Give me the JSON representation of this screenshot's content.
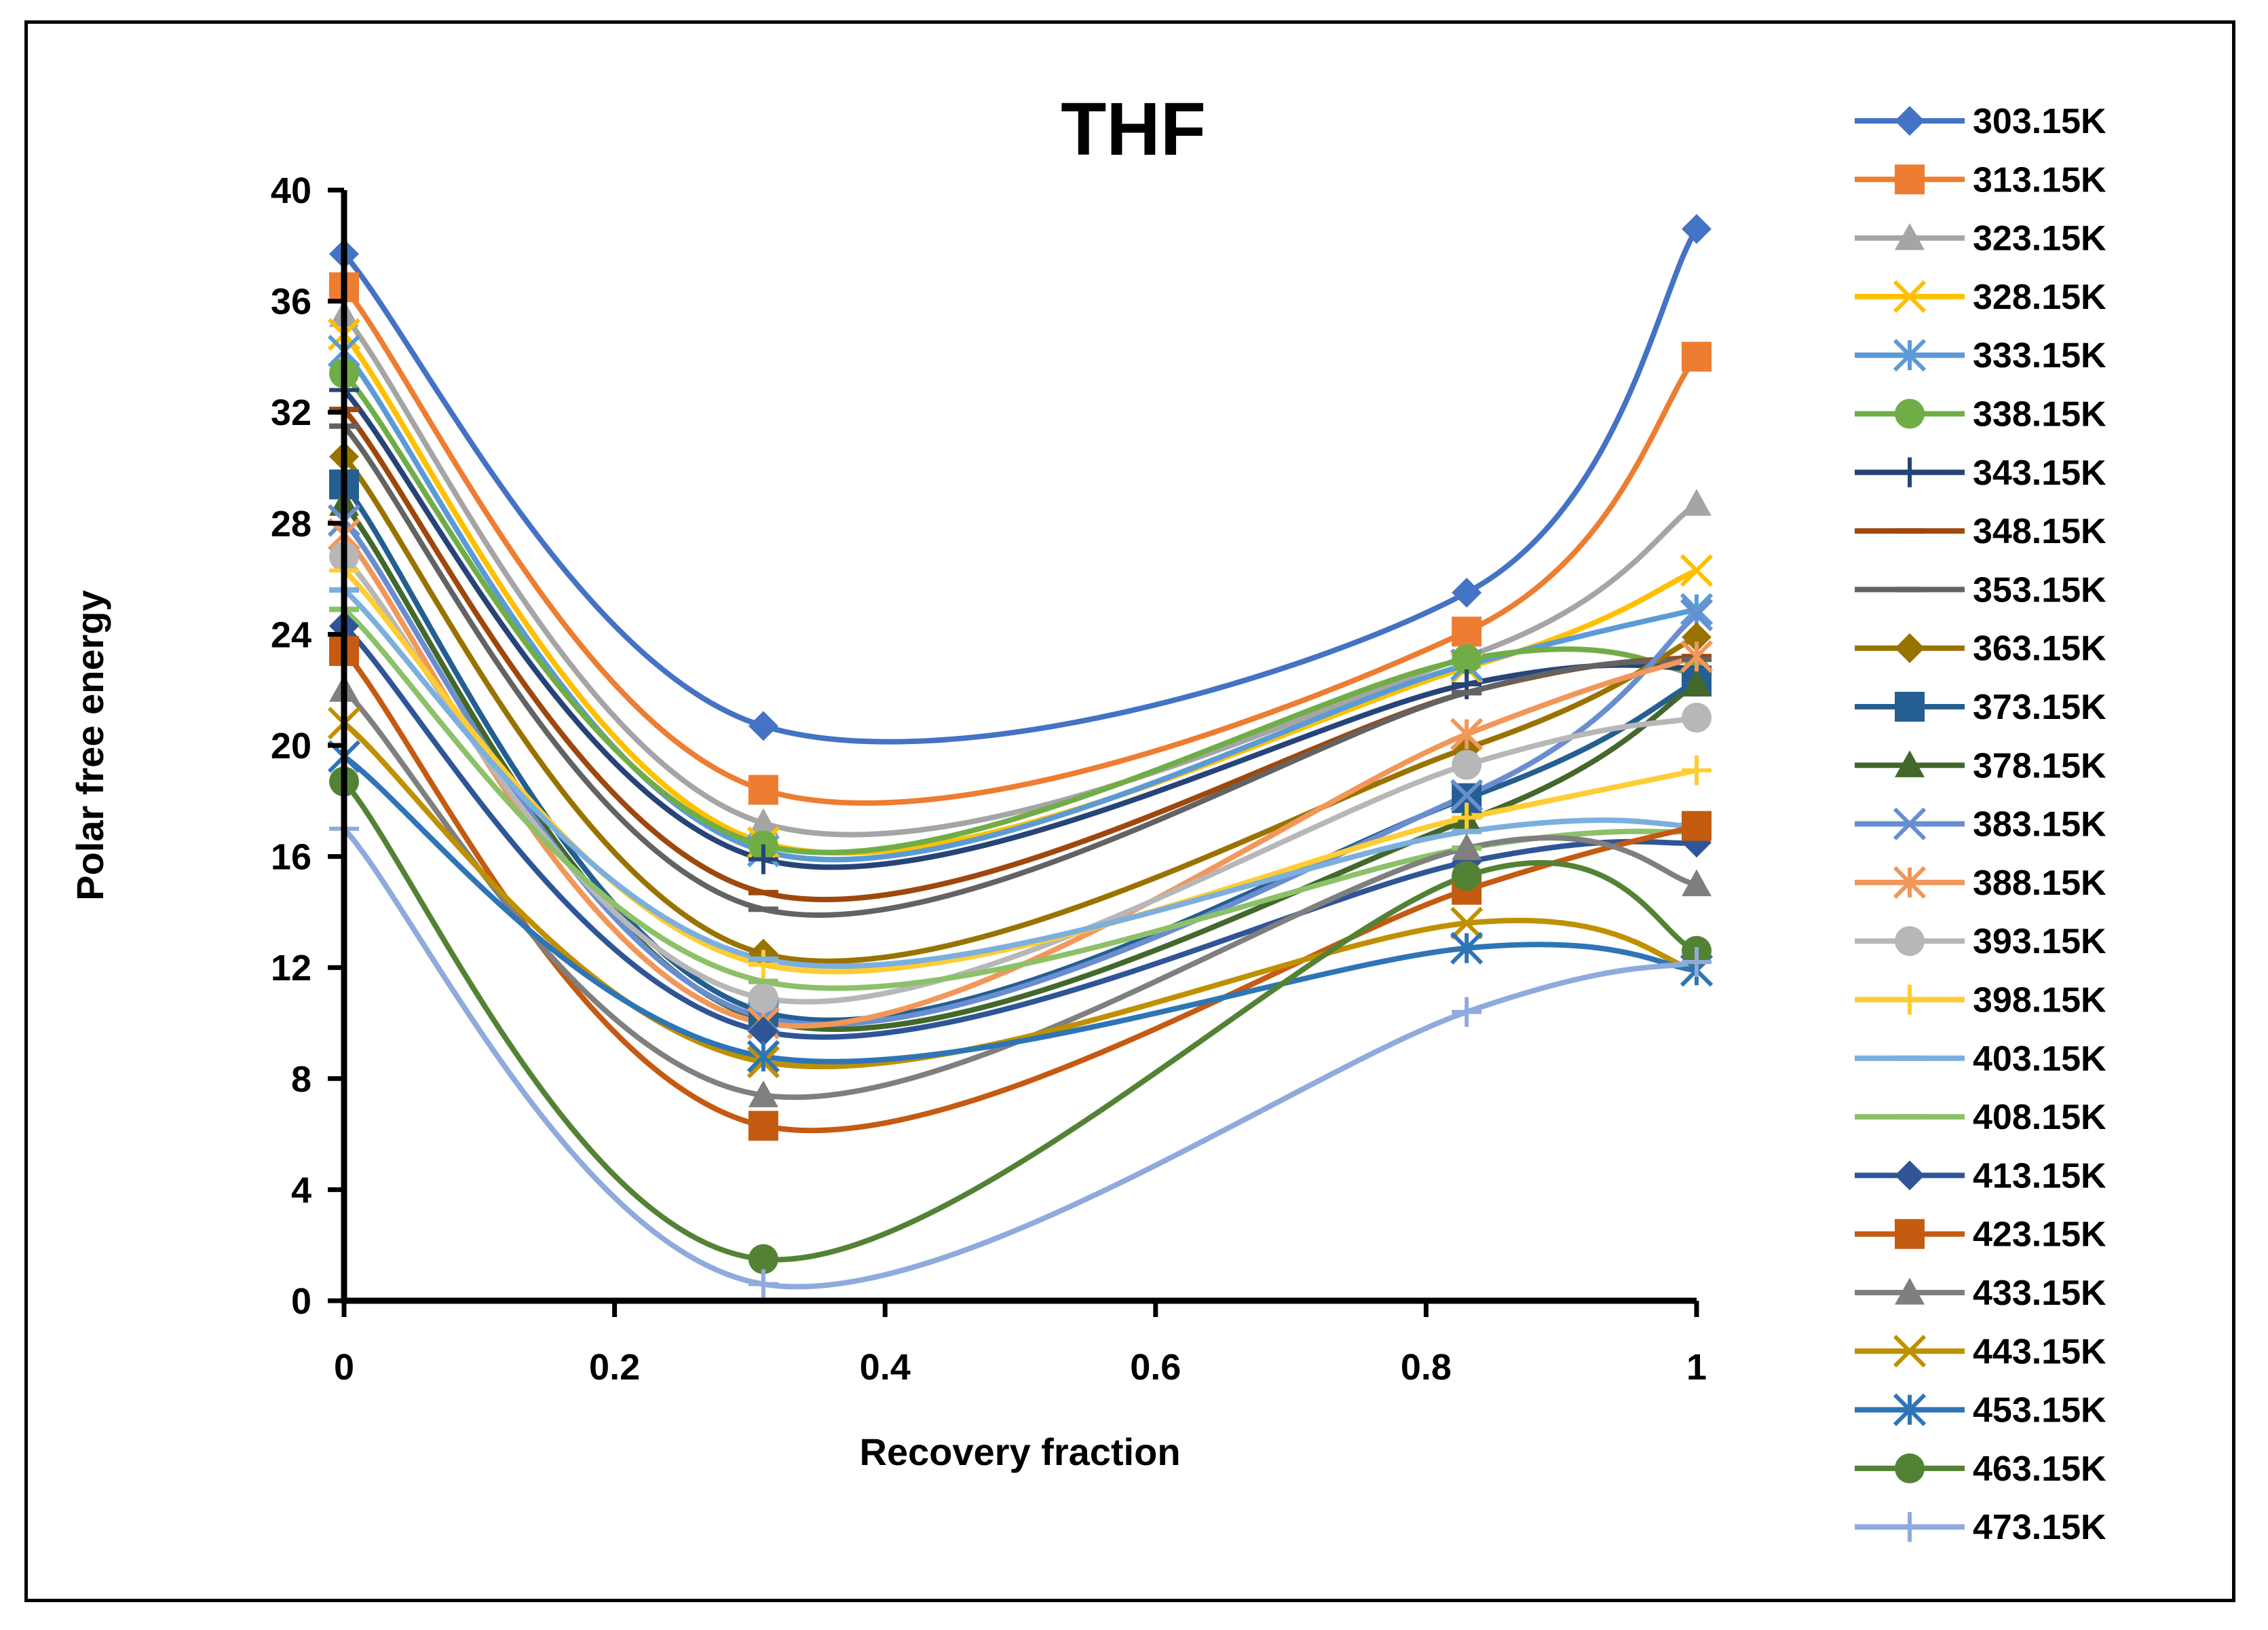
{
  "chart_data": {
    "type": "line",
    "title": "THF",
    "xlabel": "Recovery fraction",
    "ylabel": "Polar free energy",
    "xlim": [
      0,
      1
    ],
    "ylim": [
      0,
      40
    ],
    "x_ticks": [
      0,
      0.2,
      0.4,
      0.6,
      0.8,
      1
    ],
    "x_tick_labels": [
      "0",
      "0.2",
      "0.4",
      "0.6",
      "0.8",
      "1"
    ],
    "y_ticks": [
      0,
      4,
      8,
      12,
      16,
      20,
      24,
      28,
      32,
      36,
      40
    ],
    "y_tick_labels": [
      "0",
      "4",
      "8",
      "12",
      "16",
      "20",
      "24",
      "28",
      "32",
      "36",
      "40"
    ],
    "grid": false,
    "legend_position": "right",
    "x": [
      0,
      0.31,
      0.83,
      1
    ],
    "series": [
      {
        "name": "303.15K",
        "values": [
          37.7,
          20.7,
          25.5,
          38.6
        ],
        "color": "#4472C4",
        "marker": "diamond"
      },
      {
        "name": "313.15K",
        "values": [
          36.5,
          18.4,
          24.1,
          34.0
        ],
        "color": "#ED7D31",
        "marker": "square"
      },
      {
        "name": "323.15K",
        "values": [
          35.5,
          17.2,
          23.2,
          28.7
        ],
        "color": "#A5A5A5",
        "marker": "triangle"
      },
      {
        "name": "328.15K",
        "values": [
          34.8,
          16.5,
          22.8,
          26.3
        ],
        "color": "#FFC000",
        "marker": "x"
      },
      {
        "name": "333.15K",
        "values": [
          34.2,
          16.2,
          22.9,
          24.9
        ],
        "color": "#5B9BD5",
        "marker": "star"
      },
      {
        "name": "338.15K",
        "values": [
          33.4,
          16.4,
          23.1,
          22.6
        ],
        "color": "#70AD47",
        "marker": "circle"
      },
      {
        "name": "343.15K",
        "values": [
          32.8,
          15.9,
          22.2,
          22.8
        ],
        "color": "#264478",
        "marker": "plus"
      },
      {
        "name": "348.15K",
        "values": [
          32.1,
          14.7,
          21.9,
          23.2
        ],
        "color": "#9E480E",
        "marker": "dash"
      },
      {
        "name": "353.15K",
        "values": [
          31.5,
          14.1,
          21.9,
          23.1
        ],
        "color": "#636363",
        "marker": "dash"
      },
      {
        "name": "363.15K",
        "values": [
          30.4,
          12.5,
          19.9,
          23.9
        ],
        "color": "#997300",
        "marker": "diamond"
      },
      {
        "name": "373.15K",
        "values": [
          29.4,
          10.4,
          18.1,
          22.3
        ],
        "color": "#255E91",
        "marker": "square"
      },
      {
        "name": "378.15K",
        "values": [
          28.7,
          10.1,
          17.3,
          22.2
        ],
        "color": "#43682B",
        "marker": "triangle"
      },
      {
        "name": "383.15K",
        "values": [
          28.1,
          10.2,
          18.2,
          24.7
        ],
        "color": "#698ED0",
        "marker": "x"
      },
      {
        "name": "388.15K",
        "values": [
          27.6,
          10.0,
          20.4,
          23.2
        ],
        "color": "#F1975A",
        "marker": "star"
      },
      {
        "name": "393.15K",
        "values": [
          26.8,
          10.9,
          19.3,
          21.0
        ],
        "color": "#B7B7B7",
        "marker": "circle"
      },
      {
        "name": "398.15K",
        "values": [
          26.3,
          12.1,
          17.4,
          19.1
        ],
        "color": "#FFCD33",
        "marker": "plus"
      },
      {
        "name": "403.15K",
        "values": [
          25.6,
          12.3,
          16.9,
          17.1
        ],
        "color": "#7CAFDD",
        "marker": "dash"
      },
      {
        "name": "408.15K",
        "values": [
          24.9,
          11.5,
          16.3,
          16.9
        ],
        "color": "#8CC168",
        "marker": "dash"
      },
      {
        "name": "413.15K",
        "values": [
          24.3,
          9.7,
          15.8,
          16.5
        ],
        "color": "#2F5597",
        "marker": "diamond"
      },
      {
        "name": "423.15K",
        "values": [
          23.4,
          6.3,
          14.8,
          17.1
        ],
        "color": "#C55A11",
        "marker": "square"
      },
      {
        "name": "433.15K",
        "values": [
          22.0,
          7.4,
          16.3,
          15.0
        ],
        "color": "#7F7F7F",
        "marker": "triangle"
      },
      {
        "name": "443.15K",
        "values": [
          20.8,
          8.6,
          13.6,
          11.9
        ],
        "color": "#BF9000",
        "marker": "x"
      },
      {
        "name": "453.15K",
        "values": [
          19.6,
          8.8,
          12.7,
          11.9
        ],
        "color": "#2E75B6",
        "marker": "star"
      },
      {
        "name": "463.15K",
        "values": [
          18.7,
          1.5,
          15.3,
          12.6
        ],
        "color": "#548235",
        "marker": "circle"
      },
      {
        "name": "473.15K",
        "values": [
          17.0,
          0.6,
          10.4,
          12.2
        ],
        "color": "#8FAADC",
        "marker": "plus"
      }
    ]
  }
}
